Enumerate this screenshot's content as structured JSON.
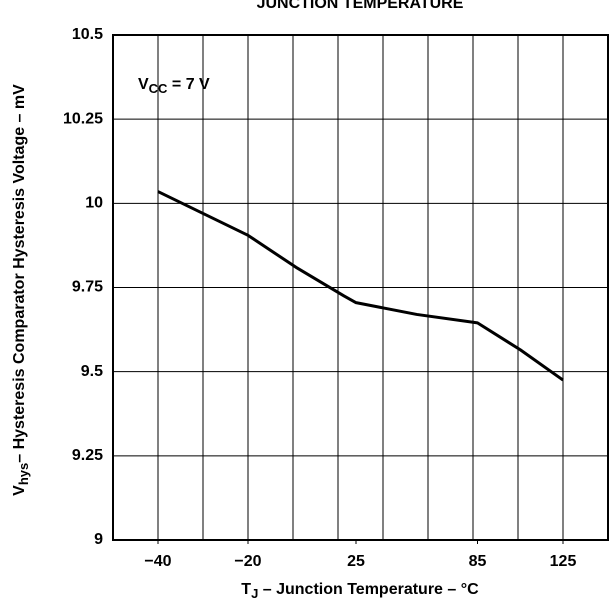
{
  "chart_data": {
    "type": "line",
    "title": "JUNCTION TEMPERATURE",
    "y_label": {
      "main": "V",
      "sub": "hys",
      "rest": "– Hysteresis Comparator Hysteresis Voltage – mV"
    },
    "x_label": {
      "main": "T",
      "sub": "J",
      "rest": " – Junction Temperature – °C"
    },
    "annotation": {
      "main": "V",
      "sub": "CC",
      "rest": " = 7 V"
    },
    "x": [
      -40,
      -30,
      -20,
      0,
      20,
      25,
      55,
      85,
      105,
      125
    ],
    "series": [
      {
        "name": "Vhys",
        "color": "#000000",
        "values": [
          10.035,
          9.97,
          9.905,
          9.81,
          9.725,
          9.705,
          9.67,
          9.645,
          9.565,
          9.475
        ]
      }
    ],
    "xticks": [
      {
        "value": -40,
        "label": "−40"
      },
      {
        "value": -20,
        "label": "−20"
      },
      25,
      85,
      125
    ],
    "ylim": [
      9,
      10.5
    ],
    "yticks": [
      9,
      9.25,
      9.5,
      9.75,
      10,
      10.25,
      10.5
    ],
    "grid": true
  }
}
